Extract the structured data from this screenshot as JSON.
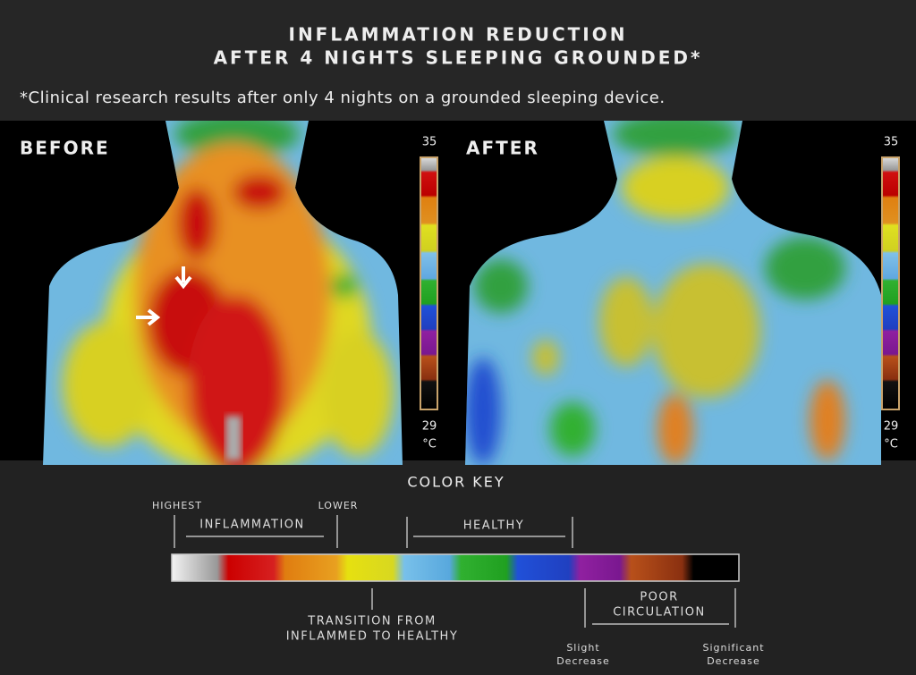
{
  "header": {
    "title_lines": [
      "INFLAMMATION REDUCTION",
      "AFTER 4 NIGHTS SLEEPING GROUNDED*"
    ],
    "note": "*Clinical research results after only 4 nights on a grounded sleeping device."
  },
  "panels": [
    {
      "label": "BEFORE",
      "scale_top": "35",
      "scale_bottom": "29",
      "unit": "°C"
    },
    {
      "label": "AFTER",
      "scale_top": "35",
      "scale_bottom": "29",
      "unit": "°C"
    }
  ],
  "color_key": {
    "title": "COLOR KEY",
    "highest": "HIGHEST",
    "lower": "LOWER",
    "inflammation": "INFLAMMATION",
    "healthy": "HEALTHY",
    "transition_lines": [
      "TRANSITION FROM",
      "INFLAMMED TO HEALTHY"
    ],
    "poor_circulation_lines": [
      "POOR",
      "CIRCULATION"
    ],
    "slight_lines": [
      "Slight",
      "Decrease"
    ],
    "significant_lines": [
      "Significant",
      "Decrease"
    ]
  }
}
